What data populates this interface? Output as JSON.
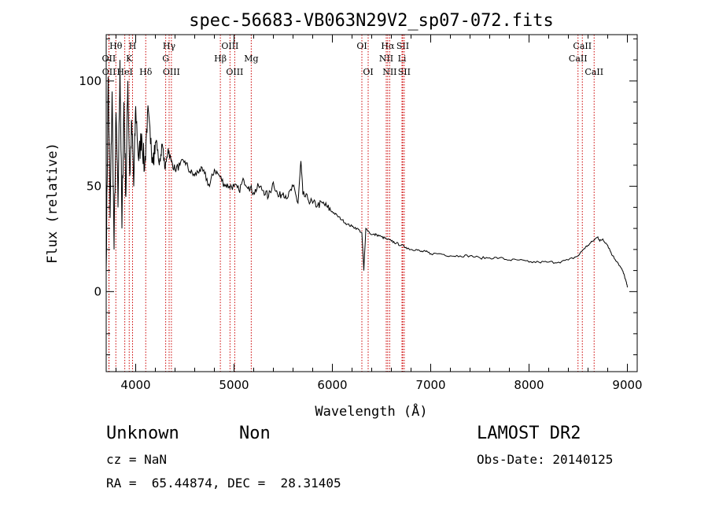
{
  "chart_data": {
    "type": "line",
    "title": "spec-56683-VB063N29V2_sp07-072.fits",
    "xlabel": "Wavelength (Å)",
    "ylabel": "Flux (relative)",
    "xlim": [
      3700,
      9100
    ],
    "ylim": [
      -38,
      122
    ],
    "xticks": [
      4000,
      5000,
      6000,
      7000,
      8000,
      9000
    ],
    "yticks": [
      0,
      50,
      100
    ],
    "line_color": "#000000",
    "marker_color": "#cc0000",
    "spectrum": {
      "x": [
        3700,
        3720,
        3740,
        3760,
        3780,
        3800,
        3820,
        3840,
        3860,
        3880,
        3900,
        3920,
        3940,
        3960,
        3980,
        4000,
        4030,
        4060,
        4090,
        4120,
        4150,
        4180,
        4210,
        4240,
        4270,
        4300,
        4330,
        4360,
        4400,
        4450,
        4500,
        4550,
        4600,
        4650,
        4700,
        4750,
        4800,
        4850,
        4900,
        4950,
        5000,
        5050,
        5100,
        5150,
        5200,
        5250,
        5300,
        5350,
        5400,
        5450,
        5500,
        5550,
        5600,
        5650,
        5680,
        5700,
        5750,
        5800,
        5850,
        5900,
        5950,
        6000,
        6050,
        6100,
        6150,
        6200,
        6250,
        6300,
        6320,
        6340,
        6400,
        6450,
        6500,
        6550,
        6600,
        6650,
        6700,
        6750,
        6800,
        6850,
        6900,
        6950,
        7000,
        7100,
        7200,
        7300,
        7400,
        7500,
        7600,
        7700,
        7800,
        7900,
        8000,
        8100,
        8200,
        8300,
        8400,
        8500,
        8550,
        8600,
        8650,
        8700,
        8720,
        8750,
        8800,
        8850,
        8900,
        8950,
        8980,
        9000
      ],
      "y": [
        10,
        102,
        35,
        95,
        20,
        85,
        40,
        110,
        30,
        90,
        45,
        100,
        55,
        80,
        50,
        88,
        62,
        75,
        58,
        85,
        70,
        66,
        72,
        60,
        70,
        58,
        68,
        62,
        58,
        60,
        62,
        57,
        55,
        58,
        56,
        50,
        58,
        55,
        51,
        50,
        50,
        48,
        53,
        50,
        47,
        50,
        48,
        45,
        52,
        45,
        47,
        45,
        50,
        42,
        62,
        46,
        44,
        42,
        41,
        42,
        40,
        38,
        36,
        34,
        32,
        31,
        30,
        28,
        10,
        30,
        27,
        27,
        26,
        25,
        24,
        23,
        22,
        21,
        20,
        20,
        19,
        19,
        18,
        18,
        17,
        17,
        17,
        16,
        16,
        16,
        15,
        15,
        14,
        14,
        14,
        14,
        15,
        17,
        20,
        22,
        24,
        26,
        24,
        25,
        22,
        17,
        14,
        10,
        6,
        2
      ]
    },
    "line_markers": [
      {
        "label": "Hθ",
        "x": 3798,
        "row": 1,
        "ticks": [
          3798
        ]
      },
      {
        "label": "OII",
        "x": 3727,
        "row": 2,
        "ticks": [
          3727
        ]
      },
      {
        "label": "OII",
        "x": 3729,
        "row": 3,
        "ticks": [
          3729
        ]
      },
      {
        "label": "HeI",
        "x": 3889,
        "row": 3,
        "ticks": [
          3889
        ]
      },
      {
        "label": "H",
        "x": 3968,
        "row": 1,
        "ticks": [
          3968
        ]
      },
      {
        "label": "K",
        "x": 3934,
        "row": 2,
        "ticks": [
          3934
        ]
      },
      {
        "label": "Hδ",
        "x": 4102,
        "row": 3,
        "ticks": [
          4102
        ]
      },
      {
        "label": "Hγ",
        "x": 4340,
        "row": 1,
        "ticks": [
          4340
        ]
      },
      {
        "label": "G",
        "x": 4305,
        "row": 2,
        "ticks": [
          4305
        ]
      },
      {
        "label": "OIII",
        "x": 4363,
        "row": 3,
        "ticks": [
          4363
        ]
      },
      {
        "label": "OIII",
        "x": 4959,
        "row": 1,
        "ticks": [
          4959
        ]
      },
      {
        "label": "Hβ",
        "x": 4861,
        "row": 2,
        "ticks": [
          4861
        ]
      },
      {
        "label": "OIII",
        "x": 5007,
        "row": 3,
        "ticks": [
          5007
        ]
      },
      {
        "label": "Mg",
        "x": 5175,
        "row": 2,
        "ticks": [
          5175
        ]
      },
      {
        "label": "OI",
        "x": 6300,
        "row": 1,
        "ticks": [
          6300
        ]
      },
      {
        "label": "OI",
        "x": 6364,
        "row": 3,
        "ticks": [
          6364
        ]
      },
      {
        "label": "Hα",
        "x": 6563,
        "row": 1,
        "ticks": [
          6563
        ]
      },
      {
        "label": "SII",
        "x": 6716,
        "row": 1,
        "ticks": [
          6716
        ]
      },
      {
        "label": "NII",
        "x": 6548,
        "row": 2,
        "ticks": [
          6548
        ]
      },
      {
        "label": "Li",
        "x": 6708,
        "row": 2,
        "ticks": [
          6708
        ]
      },
      {
        "label": "NII",
        "x": 6583,
        "row": 3,
        "ticks": [
          6583
        ]
      },
      {
        "label": "SII",
        "x": 6731,
        "row": 3,
        "ticks": [
          6731
        ]
      },
      {
        "label": "CaII",
        "x": 8542,
        "row": 1,
        "ticks": [
          8542
        ]
      },
      {
        "label": "CaII",
        "x": 8498,
        "row": 2,
        "ticks": [
          8498
        ]
      },
      {
        "label": "CaII",
        "x": 8662,
        "row": 3,
        "ticks": [
          8662
        ]
      }
    ]
  },
  "info": {
    "class": "Unknown",
    "subclass": "Non",
    "survey": "LAMOST DR2",
    "cz": "cz = NaN",
    "obs_date": "Obs-Date: 20140125",
    "coords": "RA =  65.44874, DEC =  28.31405"
  }
}
